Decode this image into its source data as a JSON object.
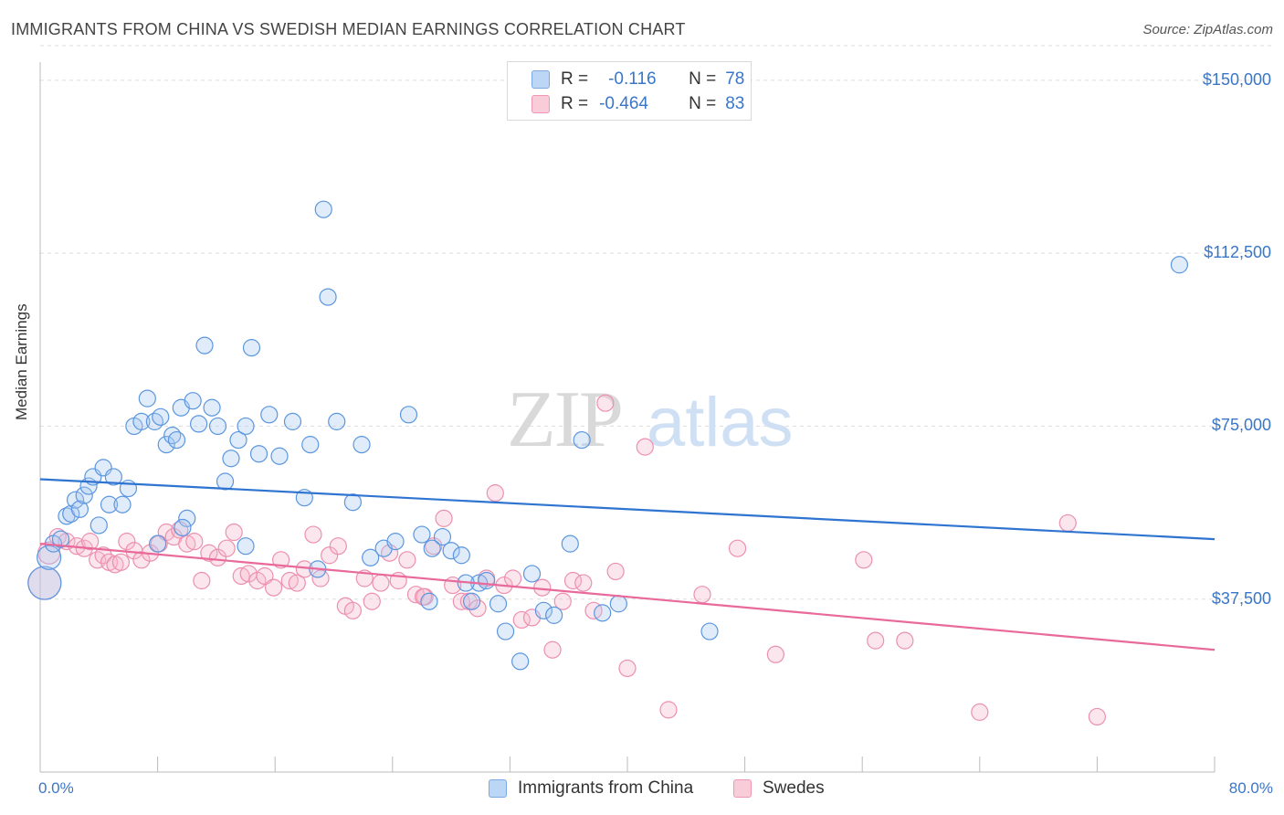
{
  "header": {
    "title": "IMMIGRANTS FROM CHINA VS SWEDISH MEDIAN EARNINGS CORRELATION CHART",
    "source": "Source: ZipAtlas.com"
  },
  "watermark": "ZIPatlas",
  "legend": {
    "rows": [
      {
        "r_label": "R =",
        "r_value": "-0.116",
        "n_label": "N =",
        "n_value": "78",
        "color": "#a8c8f0"
      },
      {
        "r_label": "R =",
        "r_value": "-0.464",
        "n_label": "N =",
        "n_value": "83",
        "color": "#f5b8cb"
      }
    ]
  },
  "bottom_legend": {
    "china": "Immigrants from China",
    "swedes": "Swedes"
  },
  "chart_data": {
    "type": "scatter",
    "title": "IMMIGRANTS FROM CHINA VS SWEDISH MEDIAN EARNINGS CORRELATION CHART",
    "xlabel": "",
    "ylabel": "Median Earnings",
    "xlim": [
      0,
      80
    ],
    "ylim": [
      0,
      157500
    ],
    "x_tick_labels": [
      "0.0%",
      "80.0%"
    ],
    "y_ticks": [
      {
        "value": 37500,
        "label": "$37,500"
      },
      {
        "value": 75000,
        "label": "$75,000"
      },
      {
        "value": 112500,
        "label": "$112,500"
      },
      {
        "value": 150000,
        "label": "$150,000"
      }
    ],
    "grid": true,
    "legend_position": "top-center",
    "colors": {
      "china": "#5b96df",
      "swedes": "#ef8aab",
      "china_line": "#2f74d0",
      "swedes_line": "#e8699a"
    },
    "series": [
      {
        "name": "Immigrants from China",
        "r": -0.116,
        "n": 78,
        "trend": {
          "x": [
            0,
            80
          ],
          "y": [
            63500,
            50500
          ]
        },
        "points": [
          [
            0.3,
            41000
          ],
          [
            0.6,
            46500
          ],
          [
            0.9,
            49500
          ],
          [
            1.4,
            50500
          ],
          [
            1.8,
            55500
          ],
          [
            2.1,
            56000
          ],
          [
            2.4,
            59000
          ],
          [
            2.7,
            57000
          ],
          [
            3.0,
            60000
          ],
          [
            3.3,
            62000
          ],
          [
            3.6,
            64000
          ],
          [
            4.0,
            53500
          ],
          [
            4.3,
            66000
          ],
          [
            4.7,
            58000
          ],
          [
            5.0,
            64000
          ],
          [
            5.6,
            58000
          ],
          [
            6.0,
            61500
          ],
          [
            6.4,
            75000
          ],
          [
            6.9,
            76000
          ],
          [
            7.3,
            81000
          ],
          [
            7.8,
            76000
          ],
          [
            8.2,
            77000
          ],
          [
            8.6,
            71000
          ],
          [
            9.0,
            73000
          ],
          [
            9.3,
            72000
          ],
          [
            9.6,
            79000
          ],
          [
            10.0,
            55000
          ],
          [
            10.4,
            80500
          ],
          [
            10.8,
            75500
          ],
          [
            11.2,
            92500
          ],
          [
            11.7,
            79000
          ],
          [
            12.1,
            75000
          ],
          [
            12.6,
            63000
          ],
          [
            13.0,
            68000
          ],
          [
            13.5,
            72000
          ],
          [
            14.0,
            75000
          ],
          [
            14.4,
            92000
          ],
          [
            14.9,
            69000
          ],
          [
            15.6,
            77500
          ],
          [
            16.3,
            68500
          ],
          [
            17.2,
            76000
          ],
          [
            18.0,
            59500
          ],
          [
            18.4,
            71000
          ],
          [
            18.9,
            44000
          ],
          [
            19.6,
            103000
          ],
          [
            20.2,
            76000
          ],
          [
            21.3,
            58500
          ],
          [
            21.9,
            71000
          ],
          [
            22.5,
            46500
          ],
          [
            23.4,
            48500
          ],
          [
            24.2,
            50000
          ],
          [
            25.1,
            77500
          ],
          [
            26.0,
            51500
          ],
          [
            26.5,
            37000
          ],
          [
            27.4,
            51000
          ],
          [
            28.0,
            48000
          ],
          [
            28.7,
            47000
          ],
          [
            29.4,
            37000
          ],
          [
            29.9,
            41000
          ],
          [
            30.4,
            41500
          ],
          [
            31.2,
            36500
          ],
          [
            31.7,
            30500
          ],
          [
            32.7,
            24000
          ],
          [
            33.5,
            43000
          ],
          [
            34.3,
            35000
          ],
          [
            35.0,
            34000
          ],
          [
            36.1,
            49500
          ],
          [
            36.9,
            72000
          ],
          [
            38.3,
            34500
          ],
          [
            39.4,
            36500
          ],
          [
            45.6,
            30500
          ],
          [
            77.6,
            110000
          ],
          [
            19.3,
            122000
          ],
          [
            14.0,
            49000
          ],
          [
            9.7,
            53000
          ],
          [
            8.0,
            49500
          ],
          [
            26.7,
            48500
          ],
          [
            29.0,
            41000
          ]
        ]
      },
      {
        "name": "Swedes",
        "r": -0.464,
        "n": 83,
        "trend": {
          "x": [
            0,
            80
          ],
          "y": [
            49500,
            26500
          ]
        },
        "points": [
          [
            0.3,
            41000
          ],
          [
            0.6,
            47500
          ],
          [
            1.2,
            51000
          ],
          [
            1.8,
            50000
          ],
          [
            2.5,
            49000
          ],
          [
            3.0,
            48500
          ],
          [
            3.4,
            50000
          ],
          [
            3.9,
            46000
          ],
          [
            4.3,
            47000
          ],
          [
            4.7,
            45500
          ],
          [
            5.1,
            45000
          ],
          [
            5.5,
            45500
          ],
          [
            5.9,
            50000
          ],
          [
            6.4,
            48000
          ],
          [
            6.9,
            46000
          ],
          [
            7.5,
            47500
          ],
          [
            8.1,
            49500
          ],
          [
            8.6,
            52000
          ],
          [
            9.1,
            51000
          ],
          [
            9.5,
            52500
          ],
          [
            10.0,
            49500
          ],
          [
            10.5,
            50000
          ],
          [
            11.0,
            41500
          ],
          [
            11.5,
            47500
          ],
          [
            12.1,
            46500
          ],
          [
            12.7,
            48500
          ],
          [
            13.2,
            52000
          ],
          [
            13.7,
            42500
          ],
          [
            14.2,
            43000
          ],
          [
            14.8,
            41500
          ],
          [
            15.3,
            42500
          ],
          [
            15.9,
            40000
          ],
          [
            16.4,
            46000
          ],
          [
            17.0,
            41500
          ],
          [
            17.5,
            41000
          ],
          [
            18.0,
            44000
          ],
          [
            18.6,
            51500
          ],
          [
            19.1,
            42000
          ],
          [
            19.7,
            47000
          ],
          [
            20.3,
            49000
          ],
          [
            20.8,
            36000
          ],
          [
            21.3,
            35000
          ],
          [
            22.1,
            42000
          ],
          [
            22.6,
            37000
          ],
          [
            23.2,
            41000
          ],
          [
            23.8,
            47500
          ],
          [
            24.4,
            41500
          ],
          [
            25.0,
            46000
          ],
          [
            25.6,
            38500
          ],
          [
            26.2,
            38000
          ],
          [
            26.8,
            49000
          ],
          [
            27.5,
            55000
          ],
          [
            28.1,
            40500
          ],
          [
            28.7,
            37000
          ],
          [
            29.2,
            37000
          ],
          [
            29.8,
            35500
          ],
          [
            30.4,
            42000
          ],
          [
            31.0,
            60500
          ],
          [
            31.6,
            40500
          ],
          [
            32.2,
            42000
          ],
          [
            32.8,
            33000
          ],
          [
            33.5,
            33500
          ],
          [
            34.2,
            40000
          ],
          [
            34.9,
            26500
          ],
          [
            35.6,
            37000
          ],
          [
            36.3,
            41500
          ],
          [
            37.0,
            41000
          ],
          [
            37.7,
            35000
          ],
          [
            38.5,
            80000
          ],
          [
            39.2,
            43500
          ],
          [
            40.0,
            22500
          ],
          [
            41.2,
            70500
          ],
          [
            42.8,
            13500
          ],
          [
            45.1,
            38500
          ],
          [
            47.5,
            48500
          ],
          [
            50.1,
            25500
          ],
          [
            56.1,
            46000
          ],
          [
            56.9,
            28500
          ],
          [
            58.9,
            28500
          ],
          [
            64.0,
            13000
          ],
          [
            70.0,
            54000
          ],
          [
            72.0,
            12000
          ],
          [
            26.1,
            38000
          ]
        ]
      }
    ]
  }
}
